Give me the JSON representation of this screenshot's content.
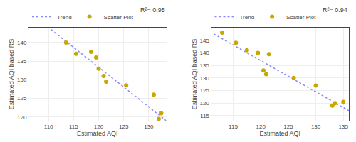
{
  "chart_data": [
    {
      "type": "scatter",
      "xlabel": "Estimated AQI",
      "ylabel": "Estimated AQI based RS",
      "annotation": "R²= 0.95",
      "xlim": [
        106.0,
        133.5
      ],
      "ylim": [
        119.0,
        144.0
      ],
      "xticks": [
        110,
        115,
        120,
        125,
        130
      ],
      "yticks": [
        120,
        125,
        130,
        135,
        140
      ],
      "grid": true,
      "legend": "upper left",
      "series": [
        {
          "name": "Trend",
          "type": "line",
          "color": "#8888ff",
          "line_style": "dotted",
          "x": [
            110.5,
            133.5
          ],
          "values": [
            143.5,
            119.0
          ]
        },
        {
          "name": "Scatter Plot",
          "type": "scatter",
          "color": "#c8a800",
          "marker": "circle",
          "x": [
            113.5,
            115.5,
            118.5,
            119.5,
            120.0,
            121.0,
            121.5,
            125.5,
            131.0,
            132.0,
            132.5
          ],
          "values": [
            140.0,
            137.0,
            137.5,
            136.0,
            133.0,
            131.0,
            129.5,
            128.5,
            126.0,
            119.5,
            121.0
          ]
        }
      ]
    },
    {
      "type": "scatter",
      "xlabel": "Estimated AQI",
      "ylabel": "Estimated AQI based RS",
      "annotation": "R²= 0.94",
      "xlim": [
        111.0,
        136.0
      ],
      "ylim": [
        113.0,
        150.0
      ],
      "xticks": [
        115,
        120,
        125,
        130,
        135
      ],
      "yticks": [
        115,
        120,
        125,
        130,
        135,
        140,
        145
      ],
      "grid": true,
      "legend": "upper left",
      "series": [
        {
          "name": "Trend",
          "type": "line",
          "color": "#8888ff",
          "line_style": "dotted",
          "x": [
            111.5,
            136.0
          ],
          "values": [
            147.5,
            117.0
          ]
        },
        {
          "name": "Scatter Plot",
          "type": "scatter",
          "color": "#c8a800",
          "marker": "circle",
          "x": [
            113.0,
            115.5,
            117.5,
            119.5,
            120.5,
            121.0,
            121.5,
            126.0,
            130.0,
            133.0,
            133.5,
            135.0
          ],
          "values": [
            148.0,
            144.0,
            141.0,
            140.0,
            133.0,
            131.5,
            139.5,
            130.0,
            127.0,
            119.0,
            120.0,
            120.5
          ]
        }
      ]
    }
  ]
}
